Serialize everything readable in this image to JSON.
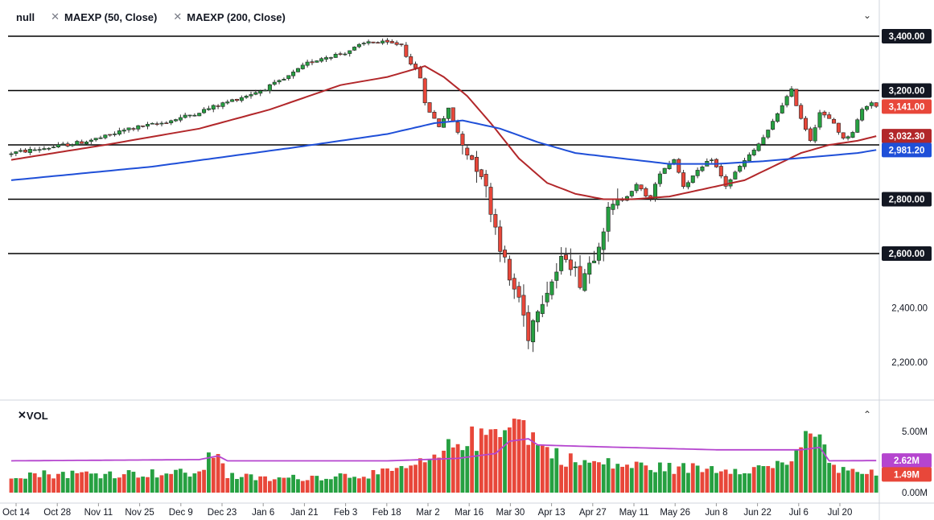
{
  "legend": {
    "symbol": "null",
    "indicators": [
      "MAEXP (50, Close)",
      "MAEXP (200, Close)"
    ],
    "close_icon": "x-icon",
    "collapse_icon": "chevron-down-icon"
  },
  "volume_legend": {
    "label": "VOL",
    "close_icon": "x-icon",
    "collapse_icon": "chevron-up-icon"
  },
  "colors": {
    "up": "#26a041",
    "down": "#e8473a",
    "ma50": "#b2272a",
    "ma200": "#1f4fd8",
    "vol_ma": "#b545cf",
    "price_badge": "#e8473a",
    "vol_badge": "#b545cf"
  },
  "chart_data": [
    {
      "type": "candlestick",
      "price_axis_labels": [
        "3,400.00",
        "3,200.00",
        "2,800.00",
        "2,600.00",
        "2,400.00",
        "2,200.00"
      ],
      "horizontal_levels": [
        3400,
        3200,
        3000,
        2800,
        2600
      ],
      "badges": [
        {
          "label": "3,400.00",
          "value": 3400,
          "style": "dark"
        },
        {
          "label": "3,200.00",
          "value": 3200,
          "style": "dark"
        },
        {
          "label": "3,141.00",
          "value": 3141,
          "style": "last"
        },
        {
          "label": "3,032.30",
          "value": 3032.3,
          "style": "ma50"
        },
        {
          "label": "2,981.20",
          "value": 2981.2,
          "style": "ma200"
        },
        {
          "label": "2,800.00",
          "value": 2800,
          "style": "dark"
        },
        {
          "label": "2,600.00",
          "value": 2600,
          "style": "dark"
        }
      ],
      "x_axis_labels": [
        "Oct 14",
        "Oct 28",
        "Nov 11",
        "Nov 25",
        "Dec 9",
        "Dec 23",
        "Jan 6",
        "Jan 21",
        "Feb 3",
        "Feb 18",
        "Mar 2",
        "Mar 16",
        "Mar 30",
        "Apr 13",
        "Apr 27",
        "May 11",
        "May 26",
        "Jun 8",
        "Jun 22",
        "Jul 6",
        "Jul 20"
      ],
      "series": [
        {
          "name": "MAEXP (50, Close)",
          "last": 3032.3
        },
        {
          "name": "MAEXP (200, Close)",
          "last": 2981.2
        }
      ],
      "close_path": [
        [
          0,
          2970
        ],
        [
          8,
          2990
        ],
        [
          15,
          3010
        ],
        [
          20,
          3030
        ],
        [
          25,
          3060
        ],
        [
          32,
          3080
        ],
        [
          38,
          3110
        ],
        [
          43,
          3140
        ],
        [
          48,
          3170
        ],
        [
          53,
          3200
        ],
        [
          58,
          3240
        ],
        [
          63,
          3300
        ],
        [
          66,
          3320
        ],
        [
          71,
          3340
        ],
        [
          76,
          3380
        ],
        [
          83,
          3370
        ],
        [
          84,
          3330
        ],
        [
          87,
          3250
        ],
        [
          88,
          3150
        ],
        [
          91,
          3070
        ],
        [
          93,
          3130
        ],
        [
          96,
          3000
        ],
        [
          100,
          2900
        ],
        [
          103,
          2700
        ],
        [
          106,
          2500
        ],
        [
          108,
          2440
        ],
        [
          110,
          2300
        ],
        [
          112,
          2410
        ],
        [
          115,
          2500
        ],
        [
          118,
          2600
        ],
        [
          121,
          2500
        ],
        [
          124,
          2600
        ],
        [
          127,
          2750
        ],
        [
          130,
          2800
        ],
        [
          133,
          2850
        ],
        [
          136,
          2800
        ],
        [
          138,
          2900
        ],
        [
          141,
          2950
        ],
        [
          143,
          2850
        ],
        [
          146,
          2900
        ],
        [
          149,
          2950
        ],
        [
          152,
          2850
        ],
        [
          155,
          2920
        ],
        [
          158,
          2980
        ],
        [
          161,
          3050
        ],
        [
          164,
          3150
        ],
        [
          166,
          3200
        ],
        [
          168,
          3100
        ],
        [
          170,
          3020
        ],
        [
          172,
          3120
        ],
        [
          175,
          3080
        ],
        [
          177,
          3020
        ],
        [
          179,
          3050
        ],
        [
          181,
          3130
        ],
        [
          183,
          3160
        ],
        [
          184,
          3141
        ]
      ],
      "ma50_path": [
        [
          0,
          2945
        ],
        [
          20,
          3000
        ],
        [
          40,
          3060
        ],
        [
          55,
          3130
        ],
        [
          70,
          3220
        ],
        [
          80,
          3250
        ],
        [
          88,
          3290
        ],
        [
          92,
          3250
        ],
        [
          97,
          3180
        ],
        [
          102,
          3080
        ],
        [
          108,
          2950
        ],
        [
          114,
          2860
        ],
        [
          120,
          2820
        ],
        [
          126,
          2800
        ],
        [
          132,
          2800
        ],
        [
          140,
          2810
        ],
        [
          148,
          2840
        ],
        [
          156,
          2870
        ],
        [
          162,
          2920
        ],
        [
          168,
          2970
        ],
        [
          174,
          3000
        ],
        [
          180,
          3015
        ],
        [
          184,
          3032.3
        ]
      ],
      "ma200_path": [
        [
          0,
          2870
        ],
        [
          30,
          2920
        ],
        [
          60,
          2990
        ],
        [
          80,
          3040
        ],
        [
          90,
          3080
        ],
        [
          96,
          3090
        ],
        [
          104,
          3060
        ],
        [
          112,
          3010
        ],
        [
          120,
          2970
        ],
        [
          130,
          2950
        ],
        [
          140,
          2930
        ],
        [
          150,
          2930
        ],
        [
          160,
          2940
        ],
        [
          170,
          2955
        ],
        [
          180,
          2970
        ],
        [
          184,
          2981.2
        ]
      ]
    },
    {
      "type": "bar",
      "name": "VOL",
      "axis_labels": [
        "5.00M",
        "0.00M"
      ],
      "badges": [
        {
          "label": "2.62M",
          "value": 2.62,
          "style": "vol_ma"
        },
        {
          "label": "1.49M",
          "value": 1.49,
          "style": "last"
        }
      ],
      "vol_ma_path": [
        [
          0,
          2.6
        ],
        [
          40,
          2.7
        ],
        [
          44,
          3.0
        ],
        [
          46,
          2.6
        ],
        [
          80,
          2.6
        ],
        [
          95,
          2.8
        ],
        [
          103,
          3.2
        ],
        [
          106,
          4.2
        ],
        [
          110,
          4.4
        ],
        [
          112,
          3.9
        ],
        [
          120,
          3.8
        ],
        [
          150,
          3.5
        ],
        [
          168,
          3.5
        ],
        [
          172,
          3.7
        ],
        [
          174,
          2.6
        ],
        [
          184,
          2.62
        ]
      ],
      "volume_profile": [
        [
          0,
          1.5
        ],
        [
          40,
          1.6
        ],
        [
          44,
          3.7
        ],
        [
          46,
          1.4
        ],
        [
          55,
          1.1
        ],
        [
          80,
          1.6
        ],
        [
          90,
          2.6
        ],
        [
          96,
          4.5
        ],
        [
          100,
          4.3
        ],
        [
          106,
          6.3
        ],
        [
          110,
          5.0
        ],
        [
          113,
          3.6
        ],
        [
          120,
          2.5
        ],
        [
          140,
          2.0
        ],
        [
          160,
          2.0
        ],
        [
          168,
          3.0
        ],
        [
          170,
          5.4
        ],
        [
          172,
          4.0
        ],
        [
          176,
          1.8
        ],
        [
          184,
          1.49
        ]
      ]
    }
  ]
}
